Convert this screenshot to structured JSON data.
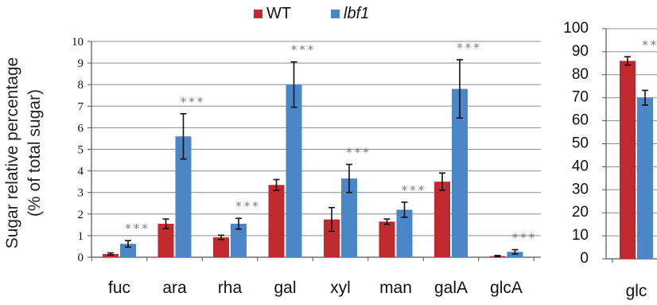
{
  "chart_data": [
    {
      "type": "bar",
      "title": "",
      "xlabel": "",
      "ylabel": [
        "Sugar relative percentage",
        "(% of total sugar)"
      ],
      "ylim": [
        0,
        10
      ],
      "yticks": [
        0,
        1,
        2,
        3,
        4,
        5,
        6,
        7,
        8,
        9,
        10
      ],
      "grid": true,
      "legend_position": "top-center",
      "categories": [
        "fuc",
        "ara",
        "rha",
        "gal",
        "xyl",
        "man",
        "galA",
        "glcA"
      ],
      "series": [
        {
          "name": "WT",
          "color": "#c0292e",
          "values": [
            0.15,
            1.55,
            0.92,
            3.35,
            1.75,
            1.65,
            3.5,
            0.05
          ],
          "errors": [
            0.05,
            0.22,
            0.1,
            0.25,
            0.55,
            0.12,
            0.4,
            0.03
          ]
        },
        {
          "name": "lbf1",
          "color": "#4a86c8",
          "values": [
            0.62,
            5.6,
            1.55,
            8.0,
            3.65,
            2.2,
            7.8,
            0.25
          ],
          "errors": [
            0.15,
            1.05,
            0.25,
            1.05,
            0.65,
            0.35,
            1.35,
            0.1
          ]
        }
      ],
      "annotations": [
        "***",
        "***",
        "***",
        "***",
        "***",
        "***",
        "***",
        "***"
      ]
    },
    {
      "type": "bar",
      "title": "",
      "xlabel": "",
      "ylabel": "",
      "ylim": [
        0,
        100
      ],
      "yticks": [
        0,
        10,
        20,
        30,
        40,
        50,
        60,
        70,
        80,
        90,
        100
      ],
      "grid": true,
      "categories": [
        "glc"
      ],
      "series": [
        {
          "name": "WT",
          "color": "#c0292e",
          "values": [
            86
          ],
          "errors": [
            1.8
          ]
        },
        {
          "name": "lbf1",
          "color": "#4a86c8",
          "values": [
            70
          ],
          "errors": [
            3.2
          ]
        }
      ],
      "annotations": [
        "***"
      ]
    }
  ]
}
